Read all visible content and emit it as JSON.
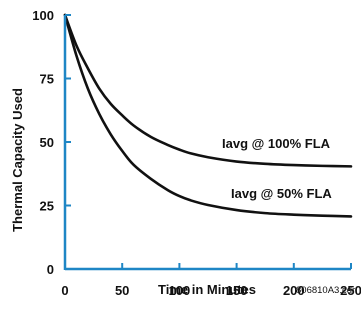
{
  "chart_data": {
    "type": "line",
    "xlabel": "Time in Minutes",
    "ylabel": "Thermal Capacity Used",
    "xlim": [
      0,
      250
    ],
    "ylim": [
      0,
      100
    ],
    "x_ticks": [
      "0",
      "50",
      "100",
      "150",
      "200",
      "250"
    ],
    "y_ticks": [
      "0",
      "25",
      "50",
      "75",
      "100"
    ],
    "grid": false,
    "axis_color": "#1e86c5",
    "line_color": "#111111",
    "footnote": "806810A3.cdr",
    "series": [
      {
        "name": "Iavg @ 100% FLA",
        "x": [
          0,
          10,
          20,
          30,
          40,
          50,
          60,
          75,
          90,
          100,
          110,
          125,
          150,
          175,
          200,
          225,
          250
        ],
        "y": [
          100,
          88,
          79,
          71,
          65,
          60.5,
          56.5,
          52,
          48.8,
          47,
          45.5,
          44,
          42.3,
          41.4,
          40.9,
          40.6,
          40.4
        ]
      },
      {
        "name": "Iavg @ 50% FLA",
        "x": [
          0,
          10,
          20,
          30,
          40,
          50,
          60,
          75,
          90,
          100,
          110,
          125,
          150,
          175,
          200,
          225,
          250
        ],
        "y": [
          100,
          84,
          71,
          61,
          53,
          46.5,
          41,
          35.5,
          31,
          28.7,
          27,
          25.2,
          23.2,
          22,
          21.4,
          21,
          20.7
        ]
      }
    ]
  }
}
